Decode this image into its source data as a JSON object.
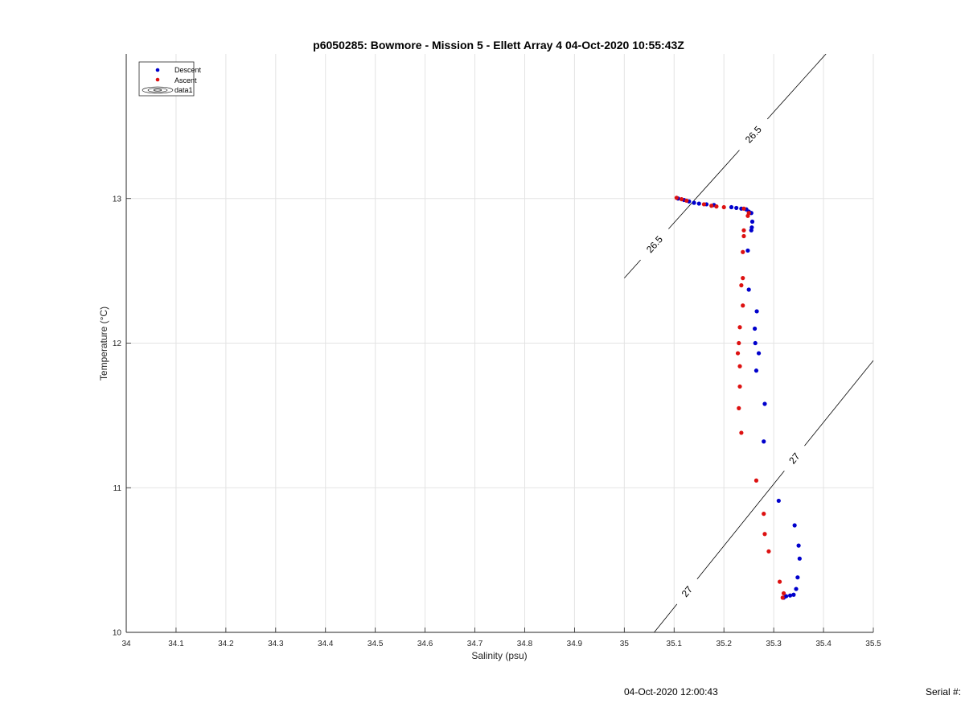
{
  "chart_data": {
    "type": "scatter",
    "title": "p6050285: Bowmore - Mission 5 - Ellett Array 4 04-Oct-2020 10:55:43Z",
    "xlabel": "Salinity (psu)",
    "ylabel": "Temperature (°C)",
    "xlim": [
      34,
      35.5
    ],
    "ylim": [
      10,
      14
    ],
    "xticks": [
      34,
      34.1,
      34.2,
      34.3,
      34.4,
      34.5,
      34.6,
      34.7,
      34.8,
      34.9,
      35,
      35.1,
      35.2,
      35.3,
      35.4,
      35.5
    ],
    "xtick_labels": [
      "34",
      "34.1",
      "34.2",
      "34.3",
      "34.4",
      "34.5",
      "34.6",
      "34.7",
      "34.8",
      "34.9",
      "35",
      "35.1",
      "35.2",
      "35.3",
      "35.4",
      "35.5"
    ],
    "yticks": [
      10,
      11,
      12,
      13
    ],
    "ytick_labels": [
      "10",
      "11",
      "12",
      "13"
    ],
    "grid": true,
    "legend_position": "top-left",
    "legend": [
      "Descent",
      "Ascent",
      "data1"
    ],
    "colors": {
      "descent": "#0000cc",
      "ascent": "#dd1111",
      "contour": "#000000",
      "grid": "#e3e3e3"
    },
    "series": [
      {
        "name": "Descent",
        "points": [
          [
            35.108,
            13.0
          ],
          [
            35.12,
            12.99
          ],
          [
            35.13,
            12.98
          ],
          [
            35.14,
            12.97
          ],
          [
            35.15,
            12.965
          ],
          [
            35.165,
            12.96
          ],
          [
            35.18,
            12.955
          ],
          [
            35.215,
            12.94
          ],
          [
            35.225,
            12.935
          ],
          [
            35.235,
            12.93
          ],
          [
            35.245,
            12.925
          ],
          [
            35.25,
            12.91
          ],
          [
            35.255,
            12.9
          ],
          [
            35.257,
            12.84
          ],
          [
            35.256,
            12.8
          ],
          [
            35.255,
            12.78
          ],
          [
            35.248,
            12.64
          ],
          [
            35.25,
            12.37
          ],
          [
            35.266,
            12.22
          ],
          [
            35.262,
            12.1
          ],
          [
            35.263,
            12.0
          ],
          [
            35.27,
            11.93
          ],
          [
            35.265,
            11.81
          ],
          [
            35.282,
            11.58
          ],
          [
            35.28,
            11.32
          ],
          [
            35.31,
            10.91
          ],
          [
            35.342,
            10.74
          ],
          [
            35.35,
            10.6
          ],
          [
            35.352,
            10.51
          ],
          [
            35.348,
            10.38
          ],
          [
            35.345,
            10.3
          ],
          [
            35.34,
            10.26
          ],
          [
            35.333,
            10.255
          ],
          [
            35.325,
            10.25
          ],
          [
            35.32,
            10.24
          ]
        ]
      },
      {
        "name": "Ascent",
        "points": [
          [
            35.105,
            13.005
          ],
          [
            35.115,
            12.995
          ],
          [
            35.125,
            12.985
          ],
          [
            35.16,
            12.96
          ],
          [
            35.175,
            12.95
          ],
          [
            35.185,
            12.945
          ],
          [
            35.2,
            12.94
          ],
          [
            35.24,
            12.93
          ],
          [
            35.25,
            12.9
          ],
          [
            35.248,
            12.88
          ],
          [
            35.24,
            12.78
          ],
          [
            35.24,
            12.74
          ],
          [
            35.238,
            12.63
          ],
          [
            35.238,
            12.45
          ],
          [
            35.235,
            12.4
          ],
          [
            35.238,
            12.26
          ],
          [
            35.232,
            12.11
          ],
          [
            35.23,
            12.0
          ],
          [
            35.228,
            11.93
          ],
          [
            35.232,
            11.84
          ],
          [
            35.232,
            11.7
          ],
          [
            35.23,
            11.55
          ],
          [
            35.235,
            11.38
          ],
          [
            35.265,
            11.05
          ],
          [
            35.28,
            10.82
          ],
          [
            35.282,
            10.68
          ],
          [
            35.29,
            10.56
          ],
          [
            35.312,
            10.35
          ],
          [
            35.32,
            10.27
          ],
          [
            35.318,
            10.24
          ]
        ]
      }
    ],
    "contours": [
      {
        "label": "26.5",
        "line": [
          [
            35.0,
            12.45
          ],
          [
            35.405,
            14.0
          ]
        ]
      },
      {
        "label": "27",
        "line": [
          [
            35.06,
            10.0
          ],
          [
            35.5,
            11.88
          ]
        ]
      }
    ]
  },
  "footer": {
    "timestamp": "04-Oct-2020 12:00:43",
    "serial_label": "Serial #:"
  }
}
